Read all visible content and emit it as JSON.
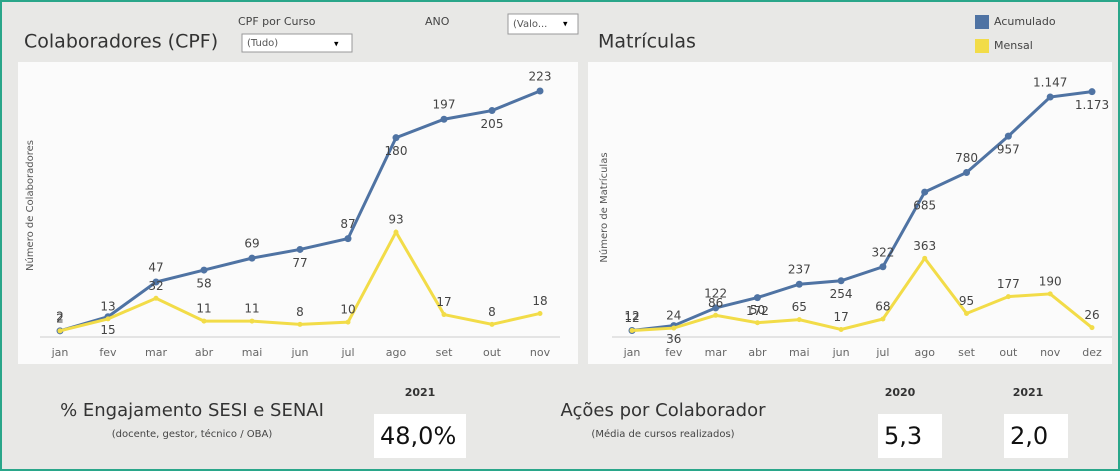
{
  "chart_data": [
    {
      "type": "line",
      "title": "Colaboradores (CPF)",
      "y_label": "Número de Colaboradores",
      "categories": [
        "jan",
        "fev",
        "mar",
        "abr",
        "mai",
        "jun",
        "jul",
        "ago",
        "set",
        "out",
        "nov"
      ],
      "series": [
        {
          "name": "Acumulado",
          "color": "#4f73a3",
          "values": [
            2,
            15,
            47,
            58,
            69,
            77,
            87,
            180,
            197,
            205,
            223
          ]
        },
        {
          "name": "Mensal",
          "color": "#f2dc48",
          "values": [
            2,
            13,
            32,
            11,
            11,
            8,
            10,
            93,
            17,
            8,
            18
          ]
        }
      ],
      "ylim": [
        0,
        235
      ],
      "grid": false
    },
    {
      "type": "line",
      "title": "Matrículas",
      "y_label": "Número de Matrículas",
      "categories": [
        "jan",
        "fev",
        "mar",
        "abr",
        "mai",
        "jun",
        "jul",
        "ago",
        "set",
        "out",
        "nov",
        "dez"
      ],
      "series": [
        {
          "name": "Acumulado",
          "color": "#4f73a3",
          "values": [
            12,
            36,
            122,
            172,
            237,
            254,
            322,
            685,
            780,
            957,
            1147,
            1173
          ],
          "value_labels": [
            "12",
            "36",
            "122",
            "172",
            "237",
            "254",
            "322",
            "685",
            "780",
            "957",
            "1.147",
            "1.173"
          ]
        },
        {
          "name": "Mensal",
          "color": "#f2dc48",
          "values": [
            12,
            24,
            86,
            50,
            65,
            17,
            68,
            363,
            95,
            177,
            190,
            26
          ]
        }
      ],
      "ylim": [
        0,
        1220
      ],
      "grid": false,
      "legend": "top-right"
    }
  ],
  "filters": {
    "cpf_label": "CPF por Curso",
    "cpf_value": "(Tudo)",
    "ano_label": "ANO",
    "ano_value": "(Valo..."
  },
  "kpis": {
    "engajamento": {
      "title": "% Engajamento SESI e SENAI",
      "subtitle": "(docente, gestor, técnico / OBA)",
      "year": "2021",
      "value": "48,0%"
    },
    "acoes": {
      "title": "Ações por Colaborador",
      "subtitle": "(Média de cursos realizados)",
      "year_a": "2020",
      "value_a": "5,3",
      "year_b": "2021",
      "value_b": "2,0"
    }
  }
}
